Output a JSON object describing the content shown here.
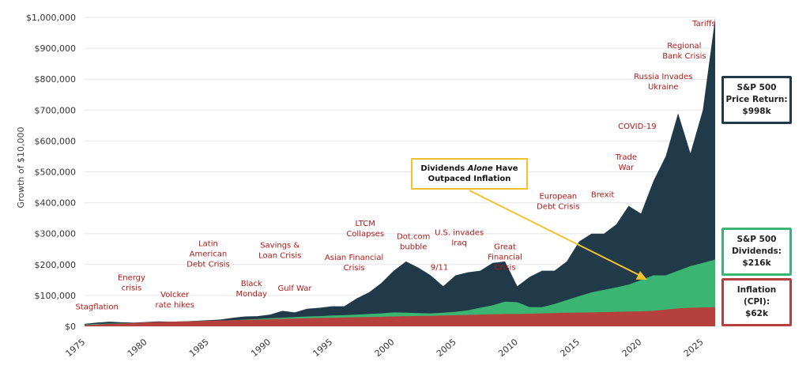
{
  "chart_data": {
    "type": "area",
    "ylabel": "Growth of $10,000",
    "ylim": [
      0,
      1000000
    ],
    "yticks": [
      "$0",
      "$100,000",
      "$200,000",
      "$300,000",
      "$400,000",
      "$500,000",
      "$600,000",
      "$700,000",
      "$800,000",
      "$900,000",
      "$1,000,000"
    ],
    "xlim": [
      1975,
      2026
    ],
    "xticks": [
      "1975",
      "1980",
      "1985",
      "1990",
      "1995",
      "2000",
      "2005",
      "2010",
      "2015",
      "2020",
      "2025"
    ],
    "x": [
      1975,
      1976,
      1977,
      1978,
      1979,
      1980,
      1981,
      1982,
      1983,
      1984,
      1985,
      1986,
      1987,
      1988,
      1989,
      1990,
      1991,
      1992,
      1993,
      1994,
      1995,
      1996,
      1997,
      1998,
      1999,
      2000,
      2001,
      2002,
      2003,
      2004,
      2005,
      2006,
      2007,
      2008,
      2009,
      2010,
      2011,
      2012,
      2013,
      2014,
      2015,
      2016,
      2017,
      2018,
      2019,
      2020,
      2021,
      2022,
      2023,
      2024,
      2025,
      2026
    ],
    "series": [
      {
        "name": "S&P 500 Price Return",
        "color": "#213a4a",
        "values": [
          8000,
          12000,
          15000,
          13000,
          12000,
          14000,
          16000,
          15000,
          16000,
          18000,
          20000,
          22000,
          28000,
          32000,
          33000,
          38000,
          50000,
          45000,
          57000,
          60000,
          65000,
          65000,
          90000,
          110000,
          140000,
          180000,
          210000,
          190000,
          165000,
          130000,
          165000,
          175000,
          180000,
          205000,
          210000,
          130000,
          160000,
          180000,
          180000,
          210000,
          275000,
          300000,
          300000,
          330000,
          390000,
          365000,
          470000,
          550000,
          690000,
          560000,
          700000,
          998000
        ]
      },
      {
        "name": "S&P 500 Dividends",
        "color": "#3bb672",
        "values": [
          6000,
          8000,
          9000,
          10000,
          11000,
          12000,
          13000,
          15000,
          16000,
          17000,
          18000,
          19000,
          20000,
          22000,
          24000,
          26000,
          28000,
          30000,
          32000,
          33000,
          35000,
          36000,
          38000,
          40000,
          42000,
          45000,
          44000,
          43000,
          42000,
          44000,
          47000,
          52000,
          60000,
          68000,
          80000,
          78000,
          62000,
          62000,
          72000,
          85000,
          98000,
          110000,
          118000,
          126000,
          135000,
          150000,
          165000,
          165000,
          180000,
          195000,
          205000,
          216000
        ]
      },
      {
        "name": "Inflation (CPI)",
        "color": "#b5403e",
        "values": [
          4000,
          6000,
          8000,
          9000,
          11000,
          13000,
          14000,
          15000,
          16000,
          17000,
          18000,
          19000,
          20000,
          21000,
          22000,
          23000,
          24000,
          25000,
          26000,
          27000,
          28000,
          29000,
          29500,
          30000,
          31000,
          32000,
          33000,
          33500,
          34000,
          35000,
          36000,
          37000,
          38000,
          39000,
          40000,
          40000,
          41000,
          42000,
          43000,
          44000,
          44500,
          45000,
          46000,
          47000,
          48000,
          48500,
          50000,
          54000,
          58000,
          60000,
          61000,
          62000
        ]
      }
    ],
    "annotations": [
      {
        "x": 1976,
        "y": 55000,
        "text": [
          "Stagflation"
        ]
      },
      {
        "x": 1978.8,
        "y": 150000,
        "text": [
          "Energy",
          "crisis"
        ]
      },
      {
        "x": 1982.3,
        "y": 95000,
        "text": [
          "Volcker",
          "rate hikes"
        ]
      },
      {
        "x": 1985,
        "y": 260000,
        "text": [
          "Latin",
          "American",
          "Debt Crisis"
        ]
      },
      {
        "x": 1988.5,
        "y": 130000,
        "text": [
          "Black",
          "Monday"
        ]
      },
      {
        "x": 1990.8,
        "y": 255000,
        "text": [
          "Savings &",
          "Loan Crisis"
        ]
      },
      {
        "x": 1992,
        "y": 115000,
        "text": [
          "Gulf War"
        ]
      },
      {
        "x": 1996.8,
        "y": 215000,
        "text": [
          "Asian Financial",
          "Crisis"
        ]
      },
      {
        "x": 1997.7,
        "y": 325000,
        "text": [
          "LTCM",
          "Collapses"
        ]
      },
      {
        "x": 2001.6,
        "y": 282000,
        "text": [
          "Dot.com",
          "bubble"
        ]
      },
      {
        "x": 2003.7,
        "y": 183000,
        "text": [
          "9/11"
        ]
      },
      {
        "x": 2005.3,
        "y": 295000,
        "text": [
          "U.S. invades",
          "Iraq"
        ]
      },
      {
        "x": 2009,
        "y": 250000,
        "text": [
          "Great",
          "Financial",
          "Crisis"
        ]
      },
      {
        "x": 2013.3,
        "y": 413000,
        "text": [
          "European",
          "Debt Crisis"
        ]
      },
      {
        "x": 2016.9,
        "y": 418000,
        "text": [
          "Brexit"
        ]
      },
      {
        "x": 2018.8,
        "y": 540000,
        "text": [
          "Trade",
          "War"
        ]
      },
      {
        "x": 2019.7,
        "y": 640000,
        "text": [
          "COVID-19"
        ]
      },
      {
        "x": 2021.8,
        "y": 800000,
        "text": [
          "Russia Invades",
          "Ukraine"
        ]
      },
      {
        "x": 2023.5,
        "y": 900000,
        "text": [
          "Regional",
          "Bank Crisis"
        ]
      },
      {
        "x": 2025.1,
        "y": 972000,
        "text": [
          "Tariffs"
        ]
      }
    ],
    "legend": [
      {
        "lines": [
          "S&P 500",
          "Price Return:",
          "$998k"
        ],
        "color": "#213a4a"
      },
      {
        "lines": [
          "S&P 500",
          "Dividends:",
          "$216k"
        ],
        "color": "#3bb672"
      },
      {
        "lines": [
          "Inflation",
          "(CPI):",
          "$62k"
        ],
        "color": "#b5403e"
      }
    ],
    "callout": {
      "lines": [
        "Dividends Alone Have",
        "Outpaced Inflation"
      ],
      "arrow_to": {
        "x": 2020.5,
        "y": 130000
      },
      "color": "#f2c12e"
    }
  }
}
